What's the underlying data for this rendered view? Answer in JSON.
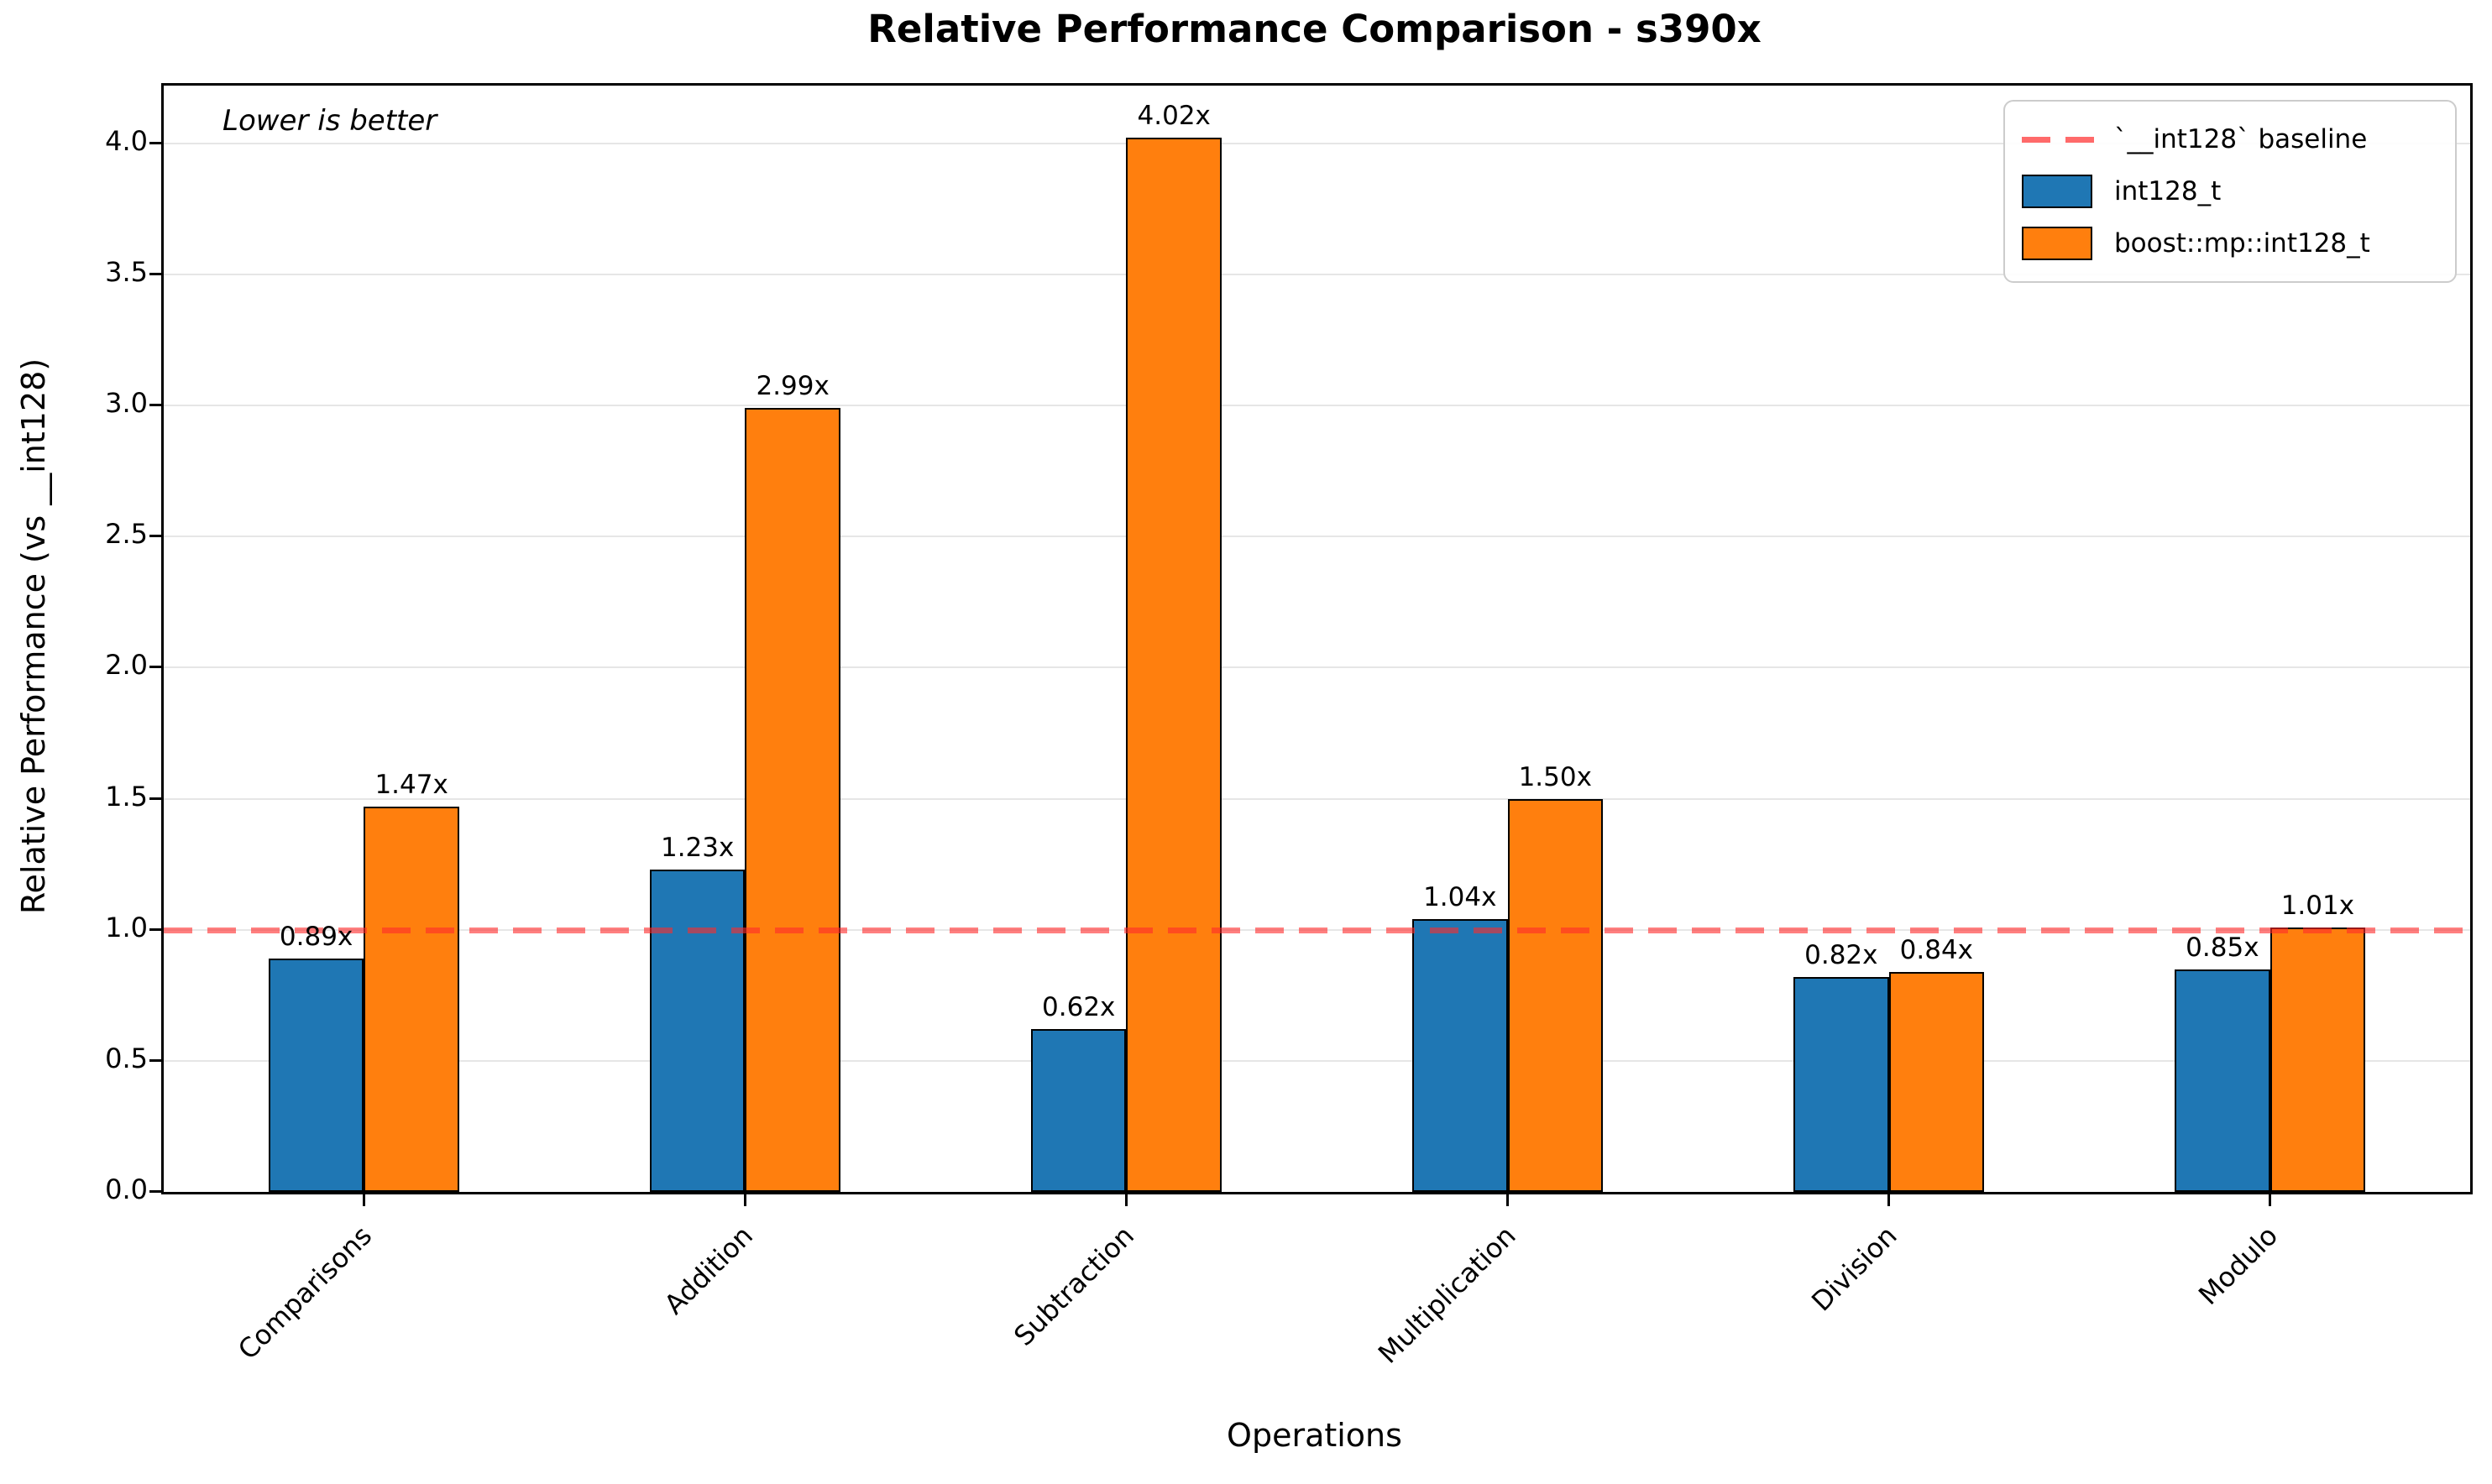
{
  "chart_data": {
    "type": "bar",
    "title": "Relative Performance Comparison - s390x",
    "xlabel": "Operations",
    "ylabel": "Relative Performance (vs __int128)",
    "annotation": "Lower is better",
    "categories": [
      "Comparisons",
      "Addition",
      "Subtraction",
      "Multiplication",
      "Division",
      "Modulo"
    ],
    "series": [
      {
        "name": "int128_t",
        "color": "#1f77b4",
        "values": [
          0.89,
          1.23,
          0.62,
          1.04,
          0.82,
          0.85
        ]
      },
      {
        "name": "boost::mp::int128_t",
        "color": "#ff7f0e",
        "values": [
          1.47,
          2.99,
          4.02,
          1.5,
          0.84,
          1.01
        ]
      }
    ],
    "bar_label_suffix": "x",
    "baseline": {
      "value": 1.0,
      "label": "`__int128` baseline",
      "color": "#ff2a2a",
      "style": "dashed"
    },
    "yticks": [
      0.0,
      0.5,
      1.0,
      1.5,
      2.0,
      2.5,
      3.0,
      3.5,
      4.0
    ],
    "ylim": [
      0,
      4.22
    ],
    "grid": true,
    "legend_position": "upper right",
    "bar_edge_color": "#000000",
    "grid_color": "#e6e6e6"
  }
}
